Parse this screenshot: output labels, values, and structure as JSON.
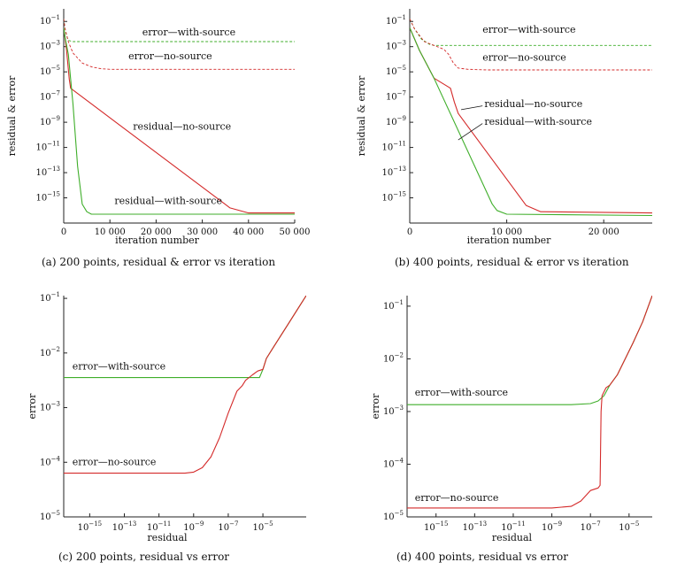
{
  "colors": {
    "red": "#d42a2a",
    "green": "#3fae2a",
    "axis": "#222222"
  },
  "chart_data": [
    {
      "id": "a",
      "type": "line",
      "caption": "(a) 200 points, residual & error vs iteration",
      "xlabel": "iteration number",
      "ylabel": "residual & error",
      "xscale": "linear",
      "yscale": "log",
      "xlim": [
        0,
        50000
      ],
      "ylim_exp": [
        -17,
        0
      ],
      "xticks": [
        {
          "v": 0,
          "label": "0"
        },
        {
          "v": 10000,
          "label": "10 000"
        },
        {
          "v": 20000,
          "label": "20 000"
        },
        {
          "v": 30000,
          "label": "30 000"
        },
        {
          "v": 40000,
          "label": "40 000"
        },
        {
          "v": 50000,
          "label": "50 000"
        }
      ],
      "yticks": [
        {
          "e": -1,
          "label": "10",
          "sup": "−1"
        },
        {
          "e": -3,
          "label": "10",
          "sup": "−3"
        },
        {
          "e": -5,
          "label": "10",
          "sup": "−5"
        },
        {
          "e": -7,
          "label": "10",
          "sup": "−7"
        },
        {
          "e": -9,
          "label": "10",
          "sup": "−9"
        },
        {
          "e": -11,
          "label": "10",
          "sup": "−11"
        },
        {
          "e": -13,
          "label": "10",
          "sup": "−13"
        },
        {
          "e": -15,
          "label": "10",
          "sup": "−15"
        }
      ],
      "series": [
        {
          "name": "error—with-source",
          "color": "green",
          "style": "dashed",
          "x": [
            0,
            300,
            600,
            1000,
            2000,
            50000
          ],
          "y_exp": [
            -0.8,
            -1.6,
            -2.1,
            -2.5,
            -2.6,
            -2.6
          ]
        },
        {
          "name": "error—no-source",
          "color": "red",
          "style": "dashed",
          "x": [
            0,
            300,
            1000,
            2000,
            4000,
            6000,
            8000,
            10000,
            50000
          ],
          "y_exp": [
            -0.8,
            -1.6,
            -2.6,
            -3.5,
            -4.3,
            -4.6,
            -4.75,
            -4.8,
            -4.8
          ]
        },
        {
          "name": "residual—no-source",
          "color": "red",
          "style": "solid",
          "x": [
            0,
            600,
            1200,
            1500,
            36000,
            40000,
            50000
          ],
          "y_exp": [
            -1.5,
            -3.2,
            -5.6,
            -6.3,
            -15.8,
            -16.2,
            -16.2
          ]
        },
        {
          "name": "residual—with-source",
          "color": "green",
          "style": "solid",
          "x": [
            0,
            300,
            1000,
            2000,
            3000,
            4000,
            5000,
            6000,
            50000
          ],
          "y_exp": [
            -1.5,
            -2.3,
            -3.6,
            -7.5,
            -12.5,
            -15.5,
            -16.1,
            -16.3,
            -16.3
          ]
        }
      ],
      "annotations": [
        {
          "text": "error—with-source",
          "x": 17000,
          "y_exp": -2.1
        },
        {
          "text": "error—no-source",
          "x": 14000,
          "y_exp": -4.0
        },
        {
          "text": "residual—no-source",
          "x": 15000,
          "y_exp": -9.6
        },
        {
          "text": "residual—with-source",
          "x": 11000,
          "y_exp": -15.5
        }
      ]
    },
    {
      "id": "b",
      "type": "line",
      "caption": "(b) 400 points, residual & error vs iteration",
      "xlabel": "iteration number",
      "ylabel": "residual & error",
      "xscale": "linear",
      "yscale": "log",
      "xlim": [
        0,
        25000
      ],
      "ylim_exp": [
        -17,
        0
      ],
      "xticks": [
        {
          "v": 0,
          "label": "0"
        },
        {
          "v": 10000,
          "label": "10 000"
        },
        {
          "v": 20000,
          "label": "20 000"
        }
      ],
      "yticks": [
        {
          "e": -1,
          "label": "10",
          "sup": "−1"
        },
        {
          "e": -3,
          "label": "10",
          "sup": "−3"
        },
        {
          "e": -5,
          "label": "10",
          "sup": "−5"
        },
        {
          "e": -7,
          "label": "10",
          "sup": "−7"
        },
        {
          "e": -9,
          "label": "10",
          "sup": "−9"
        },
        {
          "e": -11,
          "label": "10",
          "sup": "−11"
        },
        {
          "e": -13,
          "label": "10",
          "sup": "−13"
        },
        {
          "e": -15,
          "label": "10",
          "sup": "−15"
        }
      ],
      "series": [
        {
          "name": "error—with-source",
          "color": "green",
          "style": "dashed",
          "x": [
            0,
            500,
            1200,
            2000,
            2500,
            25000
          ],
          "y_exp": [
            -0.8,
            -1.6,
            -2.4,
            -2.8,
            -2.9,
            -2.9
          ]
        },
        {
          "name": "error—no-source",
          "color": "red",
          "style": "dashed",
          "x": [
            0,
            500,
            1500,
            2500,
            3500,
            4000,
            4500,
            5000,
            6000,
            8000,
            25000
          ],
          "y_exp": [
            -0.8,
            -1.6,
            -2.6,
            -2.9,
            -3.2,
            -3.6,
            -4.3,
            -4.7,
            -4.8,
            -4.85,
            -4.85
          ]
        },
        {
          "name": "residual—no-source",
          "color": "red",
          "style": "solid",
          "x": [
            0,
            1000,
            2500,
            4000,
            4200,
            4600,
            5000,
            12000,
            13500,
            25000
          ],
          "y_exp": [
            -1.5,
            -3.3,
            -5.5,
            -6.2,
            -6.3,
            -7.4,
            -8.3,
            -15.6,
            -16.1,
            -16.2
          ]
        },
        {
          "name": "residual—with-source",
          "color": "green",
          "style": "solid",
          "x": [
            0,
            1000,
            2500,
            8500,
            9000,
            10000,
            25000
          ],
          "y_exp": [
            -1.5,
            -3.3,
            -5.5,
            -15.5,
            -16.0,
            -16.3,
            -16.4
          ]
        }
      ],
      "annotations": [
        {
          "text": "error—with-source",
          "x": 7500,
          "y_exp": -1.9
        },
        {
          "text": "error—no-source",
          "x": 7500,
          "y_exp": -4.1
        },
        {
          "text": "residual—no-source",
          "x": 7700,
          "y_exp": -7.8
        },
        {
          "text": "residual—with-source",
          "x": 7700,
          "y_exp": -9.2
        }
      ],
      "leaders": [
        {
          "x1": 5300,
          "y1_exp": -8.0,
          "x2": 7500,
          "y2_exp": -7.7
        },
        {
          "x1": 5000,
          "y1_exp": -10.4,
          "x2": 7500,
          "y2_exp": -9.1
        }
      ]
    },
    {
      "id": "c",
      "type": "line",
      "caption": "(c) 200 points, residual vs error",
      "xlabel": "residual",
      "ylabel": "error",
      "xscale": "log",
      "yscale": "log",
      "xlim_exp": [
        -16.5,
        -2.5
      ],
      "ylim_exp": [
        -5,
        -0.95
      ],
      "xticks": [
        {
          "e": -15,
          "label": "10",
          "sup": "−15"
        },
        {
          "e": -13,
          "label": "10",
          "sup": "−13"
        },
        {
          "e": -11,
          "label": "10",
          "sup": "−11"
        },
        {
          "e": -9,
          "label": "10",
          "sup": "−9"
        },
        {
          "e": -7,
          "label": "10",
          "sup": "−7"
        },
        {
          "e": -5,
          "label": "10",
          "sup": "−5"
        }
      ],
      "yticks": [
        {
          "e": -1,
          "label": "10",
          "sup": "−1"
        },
        {
          "e": -2,
          "label": "10",
          "sup": "−2"
        },
        {
          "e": -3,
          "label": "10",
          "sup": "−3"
        },
        {
          "e": -4,
          "label": "10",
          "sup": "−4"
        },
        {
          "e": -5,
          "label": "10",
          "sup": "−5"
        }
      ],
      "series": [
        {
          "name": "error—with-source",
          "color": "green",
          "style": "solid",
          "x_exp": [
            -16.5,
            -6,
            -5.5,
            -5.2,
            -5.0,
            -4.8,
            -4.4,
            -4.0,
            -3.5,
            -3.0,
            -2.5
          ],
          "y_exp": [
            -2.45,
            -2.45,
            -2.45,
            -2.45,
            -2.3,
            -2.1,
            -1.9,
            -1.7,
            -1.45,
            -1.2,
            -0.95
          ]
        },
        {
          "name": "error—no-source",
          "color": "red",
          "style": "solid",
          "x_exp": [
            -16.5,
            -10,
            -9.5,
            -9.0,
            -8.5,
            -8.0,
            -7.5,
            -7.0,
            -6.5,
            -6.2,
            -6.0,
            -5.6,
            -5.3,
            -5.0,
            -4.8,
            -4.4,
            -4.0,
            -3.5,
            -3.0,
            -2.5
          ],
          "y_exp": [
            -4.2,
            -4.2,
            -4.2,
            -4.18,
            -4.1,
            -3.9,
            -3.55,
            -3.1,
            -2.7,
            -2.6,
            -2.5,
            -2.4,
            -2.33,
            -2.3,
            -2.1,
            -1.9,
            -1.7,
            -1.45,
            -1.2,
            -0.95
          ]
        }
      ],
      "annotations": [
        {
          "text": "error—with-source",
          "x_exp": -16.0,
          "y_exp": -2.3
        },
        {
          "text": "error—no-source",
          "x_exp": -16.0,
          "y_exp": -4.05
        }
      ]
    },
    {
      "id": "d",
      "type": "line",
      "caption": "(d) 400 points, residual vs error",
      "xlabel": "residual",
      "ylabel": "error",
      "xscale": "log",
      "yscale": "log",
      "xlim_exp": [
        -16.5,
        -3.8
      ],
      "ylim_exp": [
        -5,
        -0.8
      ],
      "xticks": [
        {
          "e": -15,
          "label": "10",
          "sup": "−15"
        },
        {
          "e": -13,
          "label": "10",
          "sup": "−13"
        },
        {
          "e": -11,
          "label": "10",
          "sup": "−11"
        },
        {
          "e": -9,
          "label": "10",
          "sup": "−9"
        },
        {
          "e": -7,
          "label": "10",
          "sup": "−7"
        },
        {
          "e": -5,
          "label": "10",
          "sup": "−5"
        }
      ],
      "yticks": [
        {
          "e": -1,
          "label": "10",
          "sup": "−1"
        },
        {
          "e": -2,
          "label": "10",
          "sup": "−2"
        },
        {
          "e": -3,
          "label": "10",
          "sup": "−3"
        },
        {
          "e": -4,
          "label": "10",
          "sup": "−4"
        },
        {
          "e": -5,
          "label": "10",
          "sup": "−5"
        }
      ],
      "series": [
        {
          "name": "error—with-source",
          "color": "green",
          "style": "solid",
          "x_exp": [
            -16.5,
            -8,
            -7,
            -6.6,
            -6.3,
            -6.0,
            -5.6,
            -5.2,
            -4.8,
            -4.3,
            -3.8
          ],
          "y_exp": [
            -2.87,
            -2.87,
            -2.85,
            -2.8,
            -2.7,
            -2.5,
            -2.3,
            -2.0,
            -1.7,
            -1.3,
            -0.8
          ]
        },
        {
          "name": "error—no-source",
          "color": "red",
          "style": "solid",
          "x_exp": [
            -16.5,
            -9,
            -8.0,
            -7.5,
            -7.0,
            -6.6,
            -6.5,
            -6.45,
            -6.4,
            -6.2,
            -6.0,
            -5.6,
            -5.2,
            -4.8,
            -4.3,
            -3.8
          ],
          "y_exp": [
            -4.83,
            -4.83,
            -4.8,
            -4.7,
            -4.5,
            -4.45,
            -4.4,
            -3.0,
            -2.7,
            -2.55,
            -2.5,
            -2.3,
            -2.0,
            -1.7,
            -1.3,
            -0.8
          ]
        }
      ],
      "annotations": [
        {
          "text": "error—with-source",
          "x_exp": -16.1,
          "y_exp": -2.7
        },
        {
          "text": "error—no-source",
          "x_exp": -16.1,
          "y_exp": -4.7
        }
      ]
    }
  ]
}
